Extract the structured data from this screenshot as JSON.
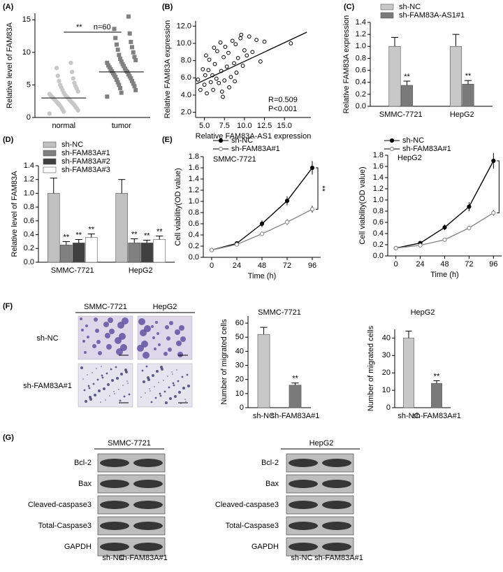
{
  "panel_labels": [
    "(A)",
    "(B)",
    "(C)",
    "(D)",
    "(E)",
    "(F)",
    "(G)"
  ],
  "chart_data": [
    {
      "type": "strip",
      "ylabel": "Relative level of FAM83A",
      "categories": [
        "normal",
        "tumor"
      ],
      "values": [
        [
          0.6,
          0.9,
          1.1,
          1.2,
          1.4,
          1.5,
          1.6,
          1.8,
          1.9,
          2.0,
          2.1,
          2.2,
          2.3,
          2.4,
          2.5,
          2.6,
          2.7,
          2.8,
          2.9,
          3.0,
          3.1,
          3.2,
          3.3,
          3.4,
          3.5,
          3.6,
          3.8,
          4.0,
          4.2,
          4.4,
          4.6,
          4.8,
          5.0,
          5.3,
          5.6,
          6.0,
          6.4,
          7.0,
          7.6,
          8.4
        ],
        [
          3.2,
          3.8,
          4.2,
          4.5,
          4.8,
          5.0,
          5.2,
          5.4,
          5.6,
          5.8,
          6.0,
          6.2,
          6.3,
          6.5,
          6.6,
          6.8,
          7.0,
          7.1,
          7.2,
          7.4,
          7.5,
          7.7,
          7.9,
          8.0,
          8.2,
          8.4,
          8.6,
          8.8,
          9.0,
          9.3,
          9.6,
          10.0,
          10.4,
          10.8,
          11.2,
          11.6,
          12.2,
          12.9,
          13.6,
          15.5
        ]
      ],
      "means": [
        3.0,
        7.0
      ],
      "colors": [
        "#c8c8c8",
        "#808080"
      ],
      "markers": [
        "circle",
        "square"
      ],
      "significance": "**",
      "n_label": "n=60",
      "ylim": [
        0,
        16
      ],
      "yticks": [
        0,
        5,
        10,
        15
      ]
    },
    {
      "type": "scatter",
      "xlabel": "Relative FAM83A-AS1 expression",
      "ylabel": "Relative FAM83A expression",
      "x": [
        4.2,
        4.5,
        4.8,
        5.0,
        5.1,
        5.3,
        5.5,
        5.6,
        5.8,
        6.0,
        6.1,
        6.3,
        6.5,
        6.6,
        6.8,
        7.0,
        7.1,
        7.2,
        7.4,
        7.5,
        7.6,
        7.8,
        8.0,
        8.1,
        8.3,
        8.5,
        8.7,
        8.9,
        9.0,
        9.2,
        9.5,
        9.8,
        10.0,
        10.3,
        10.6,
        11.0,
        11.5,
        12.0,
        12.5,
        15.8,
        6.2,
        7.3,
        8.8,
        5.2,
        9.6
      ],
      "y": [
        5.8,
        4.6,
        7.0,
        5.2,
        6.3,
        4.2,
        6.9,
        8.1,
        5.5,
        6.3,
        4.6,
        7.6,
        5.9,
        9.1,
        5.4,
        10.1,
        6.8,
        4.4,
        8.4,
        5.7,
        9.6,
        7.3,
        8.9,
        4.9,
        6.1,
        10.3,
        7.7,
        9.9,
        6.6,
        8.3,
        10.6,
        7.4,
        9.2,
        8.6,
        10.8,
        9.0,
        10.4,
        7.9,
        10.2,
        10.0,
        9.5,
        3.8,
        5.6,
        8.6,
        11.0
      ],
      "trend_line": {
        "x": [
          4.0,
          17.8
        ],
        "y": [
          5.3,
          11.3
        ]
      },
      "annotations": [
        "R=0.509",
        "P<0.001"
      ],
      "xlim": [
        3.9,
        18.3
      ],
      "ylim": [
        1.4,
        12.6
      ],
      "xticks": [
        {
          "value": 5,
          "label": "5.0"
        },
        7.5,
        {
          "value": 10,
          "label": "10.0"
        },
        12.5,
        {
          "value": 15,
          "label": "15.0"
        }
      ],
      "yticks": [
        {
          "value": 2,
          "label": "2.0"
        },
        {
          "value": 4,
          "label": "4.0"
        },
        {
          "value": 6,
          "label": "6.0"
        },
        {
          "value": 8,
          "label": "8.0"
        },
        {
          "value": 10,
          "label": "10.0"
        },
        {
          "value": 12,
          "label": "12.0"
        }
      ]
    },
    {
      "type": "bar",
      "ylabel": "Relative FAM83A expression",
      "categories": [
        "SMMC-7721",
        "HepG2"
      ],
      "legend": "top-left",
      "series": [
        {
          "name": "sh-NC",
          "color": "#c8c8c8",
          "values": [
            1.0,
            1.0
          ],
          "errors": [
            0.15,
            0.2
          ]
        },
        {
          "name": "sh-FAM83A-AS1#1",
          "color": "#7a7a7a",
          "values": [
            0.35,
            0.37
          ],
          "errors": [
            0.07,
            0.06
          ],
          "annotations": [
            "**",
            "**"
          ]
        }
      ],
      "ylim": [
        0,
        1.4
      ],
      "yticks": [
        {
          "value": 0,
          "label": "0.0"
        },
        0.2,
        0.4,
        0.6,
        0.8,
        {
          "value": 1,
          "label": "1.0"
        },
        1.2,
        1.4
      ]
    },
    {
      "type": "bar",
      "ylabel": "Relative level of FAM83A",
      "categories": [
        "SMMC-7721",
        "HepG2"
      ],
      "legend": "top-left",
      "series": [
        {
          "name": "sh-NC",
          "color": "#c0c0c0",
          "values": [
            1.0,
            1.0
          ],
          "errors": [
            0.22,
            0.2
          ]
        },
        {
          "name": "sh-FAM83A#1",
          "color": "#808080",
          "values": [
            0.25,
            0.28
          ],
          "errors": [
            0.05,
            0.06
          ],
          "annotations": [
            "**",
            "**"
          ]
        },
        {
          "name": "sh-FAM83A#2",
          "color": "#404040",
          "values": [
            0.28,
            0.28
          ],
          "errors": [
            0.05,
            0.04
          ],
          "annotations": [
            "**",
            "**"
          ]
        },
        {
          "name": "sh-FAM83A#3",
          "color": "#ffffff",
          "values": [
            0.36,
            0.33
          ],
          "errors": [
            0.05,
            0.05
          ],
          "annotations": [
            "**",
            "**"
          ]
        }
      ],
      "ylim": [
        0,
        1.4
      ],
      "yticks": [
        {
          "value": 0,
          "label": "0.0"
        },
        0.2,
        0.4,
        0.6,
        0.8,
        {
          "value": 1,
          "label": "1.0"
        },
        1.2,
        1.4
      ]
    },
    {
      "type": "line",
      "subtitle": "SMMC-7721",
      "xlabel": "Time (h)",
      "ylabel": "Cell viability(OD value)",
      "legend": "top-left",
      "x": [
        0,
        24,
        48,
        72,
        96
      ],
      "series": [
        {
          "name": "sh-NC",
          "color": "#000000",
          "marker": "filled",
          "values": [
            0.13,
            0.25,
            0.6,
            1.01,
            1.6
          ],
          "errors": [
            0.01,
            0.02,
            0.06,
            0.08,
            0.12
          ]
        },
        {
          "name": "sh-FAM83A#1",
          "color": "#888888",
          "marker": "open",
          "values": [
            0.13,
            0.23,
            0.42,
            0.63,
            0.86
          ],
          "errors": [
            0.01,
            0.02,
            0.04,
            0.05,
            0.06
          ]
        }
      ],
      "annotation": "**",
      "xlim": [
        -8,
        104
      ],
      "ylim": [
        0,
        1.8
      ],
      "xticks": [
        0,
        24,
        48,
        72,
        96
      ],
      "yticks": [
        {
          "value": 0,
          "label": "0.0"
        },
        0.2,
        0.4,
        0.6,
        0.8,
        {
          "value": 1,
          "label": "1.0"
        },
        1.2,
        1.4,
        1.6,
        1.8
      ]
    },
    {
      "type": "line",
      "subtitle": "HepG2",
      "xlabel": "Time (h)",
      "ylabel": "Cell viability(OD value)",
      "legend": "top-left",
      "x": [
        0,
        24,
        48,
        72,
        96
      ],
      "series": [
        {
          "name": "sh-NC",
          "color": "#000000",
          "marker": "filled",
          "values": [
            0.14,
            0.23,
            0.51,
            0.88,
            1.7
          ],
          "errors": [
            0.01,
            0.03,
            0.05,
            0.08,
            0.14
          ]
        },
        {
          "name": "sh-FAM83A#1",
          "color": "#888888",
          "marker": "open",
          "values": [
            0.14,
            0.19,
            0.29,
            0.5,
            0.77
          ],
          "errors": [
            0.01,
            0.02,
            0.03,
            0.04,
            0.05
          ]
        }
      ],
      "annotation": "**",
      "xlim": [
        -8,
        104
      ],
      "ylim": [
        0,
        1.8
      ],
      "xticks": [
        0,
        24,
        48,
        72,
        96
      ],
      "yticks": [
        {
          "value": 0,
          "label": "0.0"
        },
        0.2,
        0.4,
        0.6,
        0.8,
        {
          "value": 1,
          "label": "1.0"
        },
        1.2,
        1.4,
        1.6,
        1.8
      ]
    },
    {
      "type": "bar",
      "title": "SMMC-7721",
      "ylabel": "Number of migrated cells",
      "categories": [
        "sh-NC",
        "sh-FAM83A#1"
      ],
      "values": [
        52,
        16
      ],
      "errors": [
        5,
        1.5
      ],
      "annotations": [
        null,
        "**"
      ],
      "colors": [
        "#c8c8c8",
        "#7a7a7a"
      ],
      "ylim": [
        0,
        65
      ],
      "yticks": [
        0,
        10,
        20,
        30,
        40,
        50,
        60
      ]
    },
    {
      "type": "bar",
      "title": "HepG2",
      "ylabel": "Number of migrated cells",
      "categories": [
        "sh-NC",
        "sh-FAM83A#1"
      ],
      "values": [
        40,
        14
      ],
      "errors": [
        4,
        1.5
      ],
      "annotations": [
        null,
        "**"
      ],
      "colors": [
        "#c8c8c8",
        "#7a7a7a"
      ],
      "ylim": [
        0,
        45
      ],
      "yticks": [
        0,
        10,
        20,
        30,
        40
      ]
    }
  ],
  "micrographs": {
    "columns": [
      "SMMC-7721",
      "HepG2"
    ],
    "rows": [
      "sh-NC",
      "sh-FAM83A#1"
    ]
  },
  "western_blots": [
    {
      "cell_line": "SMMC-7721",
      "proteins": [
        "Bcl-2",
        "Bax",
        "Cleaved-caspase3",
        "Total-Caspase3",
        "GAPDH"
      ],
      "lanes": [
        "sh-NC",
        "sh-FAM83A#1"
      ]
    },
    {
      "cell_line": "HepG2",
      "proteins": [
        "Bcl-2",
        "Bax",
        "Cleaved-caspase3",
        "Total-Caspase3",
        "GAPDH"
      ],
      "lanes": [
        "sh-NC",
        "sh-FAM83A#1"
      ]
    }
  ]
}
